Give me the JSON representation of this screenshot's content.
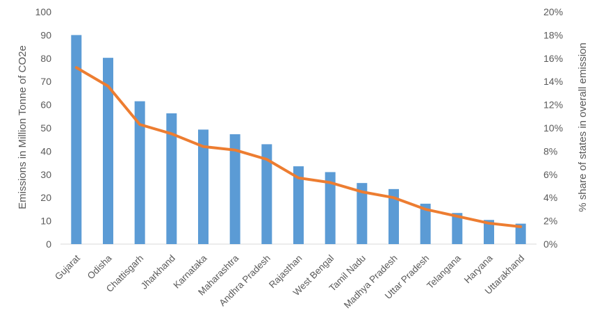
{
  "chart_data": {
    "type": "bar",
    "categories": [
      "Gujarat",
      "Odisha",
      "Chattisgarh",
      "Jharkhand",
      "Karnataka",
      "Maharashtra",
      "Andhra Pradesh",
      "Rajasthan",
      "West Bengal",
      "Tamil Nadu",
      "Madhya Pradesh",
      "Uttar Pradesh",
      "Telangana",
      "Haryana",
      "Uttarakhand"
    ],
    "series": [
      {
        "type": "bar",
        "axis": "left",
        "color": "#5B9BD5",
        "values": [
          90,
          80.2,
          61.5,
          56.3,
          49.3,
          47.3,
          43,
          33.5,
          31,
          26.3,
          23.7,
          17.4,
          13.4,
          10.4,
          8.8
        ]
      },
      {
        "type": "line",
        "axis": "right",
        "color": "#ED7D31",
        "values": [
          15.2,
          13.6,
          10.3,
          9.5,
          8.4,
          8.1,
          7.3,
          5.7,
          5.3,
          4.5,
          4.0,
          3.0,
          2.4,
          1.8,
          1.5
        ]
      }
    ],
    "ylabel": "Emissions in Million Tonne of CO2e",
    "y2label": "% share of states in overall emission",
    "ylim": [
      0,
      100
    ],
    "y2lim": [
      0,
      20
    ],
    "yticks": [
      "0",
      "10",
      "20",
      "30",
      "40",
      "50",
      "60",
      "70",
      "80",
      "90",
      "100"
    ],
    "y2ticks": [
      "0%",
      "2%",
      "4%",
      "6%",
      "8%",
      "10%",
      "12%",
      "14%",
      "16%",
      "18%",
      "20%"
    ],
    "grid": false,
    "legend": "none"
  }
}
